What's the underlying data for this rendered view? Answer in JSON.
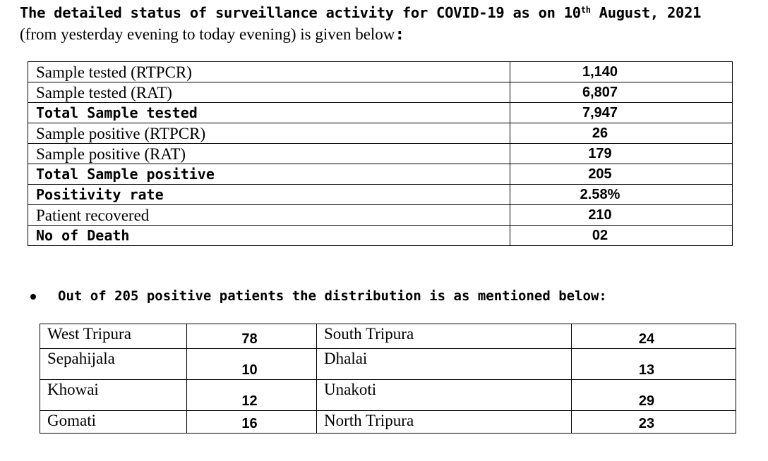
{
  "header": {
    "title_pre": "The detailed status of surveillance activity for COVID-19 as on 10",
    "title_sup": "th",
    "title_post": " August, 2021",
    "subtitle": "(from yesterday evening to today evening) is given below",
    "subtitle_colon": ":"
  },
  "status_table": {
    "rows": [
      {
        "label": "Sample tested (RTPCR)",
        "value": "1,140"
      },
      {
        "label": "Sample tested (RAT)",
        "value": "6,807"
      },
      {
        "label": "Total Sample tested",
        "value": "7,947"
      },
      {
        "label": "Sample positive (RTPCR)",
        "value": "26"
      },
      {
        "label": "Sample positive (RAT)",
        "value": "179"
      },
      {
        "label": "Total Sample positive",
        "value": "205"
      },
      {
        "label": "Positivity rate",
        "value": "2.58%"
      },
      {
        "label": "Patient recovered",
        "value": "210"
      },
      {
        "label": "No of Death",
        "value": "02"
      }
    ]
  },
  "distribution": {
    "heading": "Out of 205 positive patients the distribution is as mentioned below:",
    "rows": [
      {
        "left_name": "West Tripura",
        "left_value": "78",
        "right_name": "South Tripura",
        "right_value": "24"
      },
      {
        "left_name": "Sepahijala",
        "left_value": "10",
        "right_name": "Dhalai",
        "right_value": "13"
      },
      {
        "left_name": "Khowai",
        "left_value": "12",
        "right_name": "Unakoti",
        "right_value": "29"
      },
      {
        "left_name": "Gomati",
        "left_value": "16",
        "right_name": "North Tripura",
        "right_value": "23"
      }
    ]
  }
}
